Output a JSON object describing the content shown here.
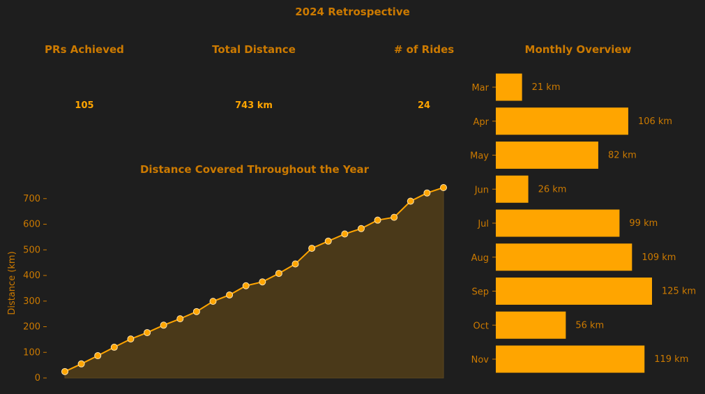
{
  "title": "2024 Retrospective",
  "stats": [
    {
      "label": "PRs Achieved",
      "value": "105"
    },
    {
      "label": "Total Distance",
      "value": "743 km"
    },
    {
      "label": "# of Rides",
      "value": "24"
    }
  ],
  "colors": {
    "background": "#1e1e1e",
    "accent": "#ffa500",
    "text": "#cc7a00",
    "area_fill": "#4a3919",
    "marker_edge": "#ffe3b0"
  },
  "chart_data": [
    {
      "type": "area",
      "title": "Distance Covered Throughout the Year",
      "ylabel": "Distance (km)",
      "xlabel": "",
      "x": [
        1,
        2,
        3,
        4,
        5,
        6,
        7,
        8,
        9,
        10,
        11,
        12,
        13,
        14,
        15,
        16,
        17,
        18,
        19,
        20,
        21,
        22,
        23,
        24
      ],
      "values": [
        25,
        55,
        87,
        120,
        152,
        177,
        206,
        231,
        259,
        299,
        324,
        360,
        375,
        408,
        445,
        506,
        534,
        562,
        583,
        616,
        627,
        690,
        722,
        743
      ],
      "ylim": [
        0,
        743
      ],
      "yticks": [
        0,
        100,
        200,
        300,
        400,
        500,
        600,
        700
      ],
      "markers": true,
      "grid": false
    },
    {
      "type": "bar",
      "orientation": "horizontal",
      "title": "Monthly Overview",
      "categories": [
        "Mar",
        "Apr",
        "May",
        "Jun",
        "Jul",
        "Aug",
        "Sep",
        "Oct",
        "Nov"
      ],
      "values": [
        21,
        106,
        82,
        26,
        99,
        109,
        125,
        56,
        119
      ],
      "value_labels": [
        "21 km",
        "106 km",
        "82 km",
        "26 km",
        "99 km",
        "109 km",
        "125 km",
        "56 km",
        "119 km"
      ],
      "xlim": [
        0,
        125
      ],
      "grid": false
    }
  ]
}
